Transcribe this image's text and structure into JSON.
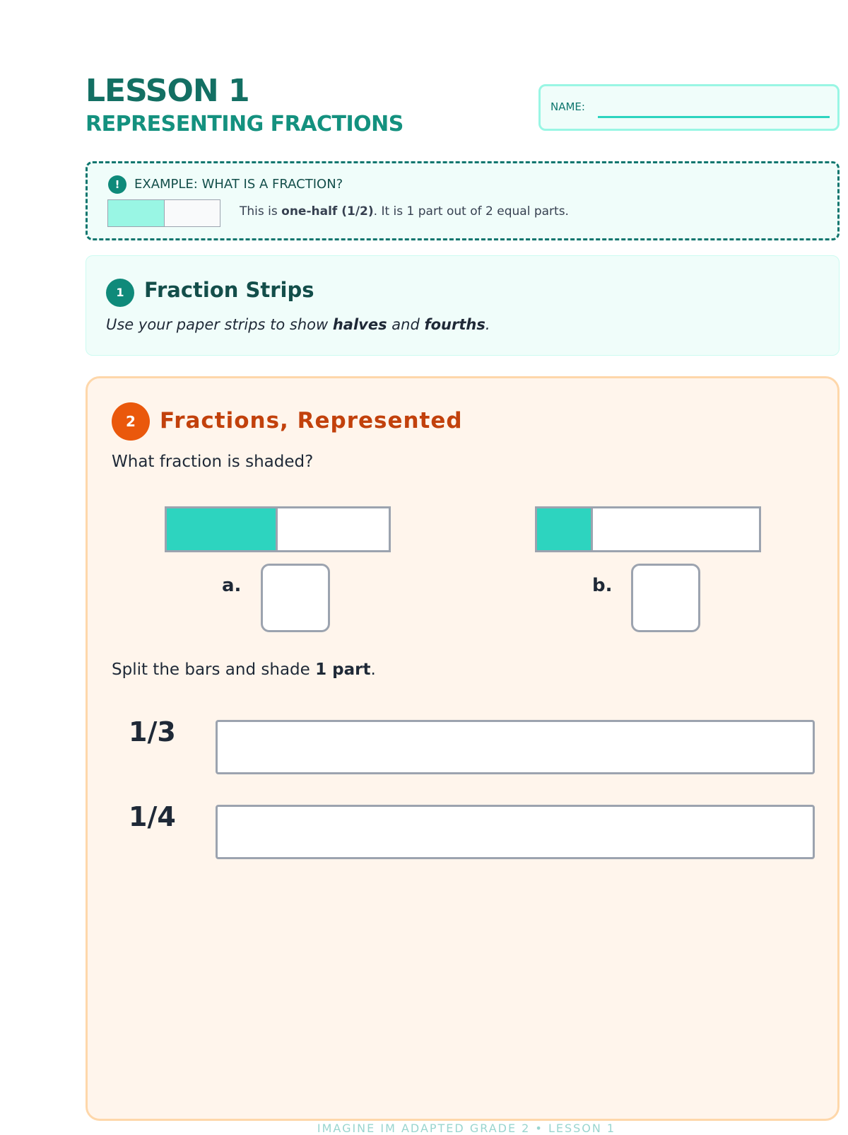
{
  "header": {
    "lesson": "LESSON 1",
    "subtitle": "REPRESENTING FRACTIONS",
    "name_label": "NAME:"
  },
  "example": {
    "icon": "exclamation-icon",
    "icon_glyph": "!",
    "title": "EXAMPLE: WHAT IS A FRACTION?",
    "text_pre": "This is ",
    "text_bold": "one-half (1/2)",
    "text_post": ". It is 1 part out of 2 equal parts.",
    "strip_shaded": 0.5,
    "colors": {
      "shade": "#99f6e4"
    }
  },
  "section1": {
    "number": "1",
    "title": "Fraction Strips",
    "sub_pre": "Use your paper strips to show ",
    "sub_b1": "halves",
    "sub_mid": " and ",
    "sub_b2": "fourths",
    "sub_post": "."
  },
  "section2": {
    "number": "2",
    "title": "Fractions, Represented",
    "question": "What fraction is shaded?",
    "items": [
      {
        "label": "a.",
        "shaded_fraction": 0.5
      },
      {
        "label": "b.",
        "shaded_fraction": 0.25
      }
    ],
    "split_pre": "Split the bars and shade ",
    "split_bold": "1 part",
    "split_post": ".",
    "split_rows": [
      {
        "fraction": "1/3"
      },
      {
        "fraction": "1/4"
      }
    ],
    "colors": {
      "shade": "#2dd4bf",
      "accent": "#ea580c"
    }
  },
  "footer": "IMAGINE IM ADAPTED GRADE 2 • LESSON 1"
}
